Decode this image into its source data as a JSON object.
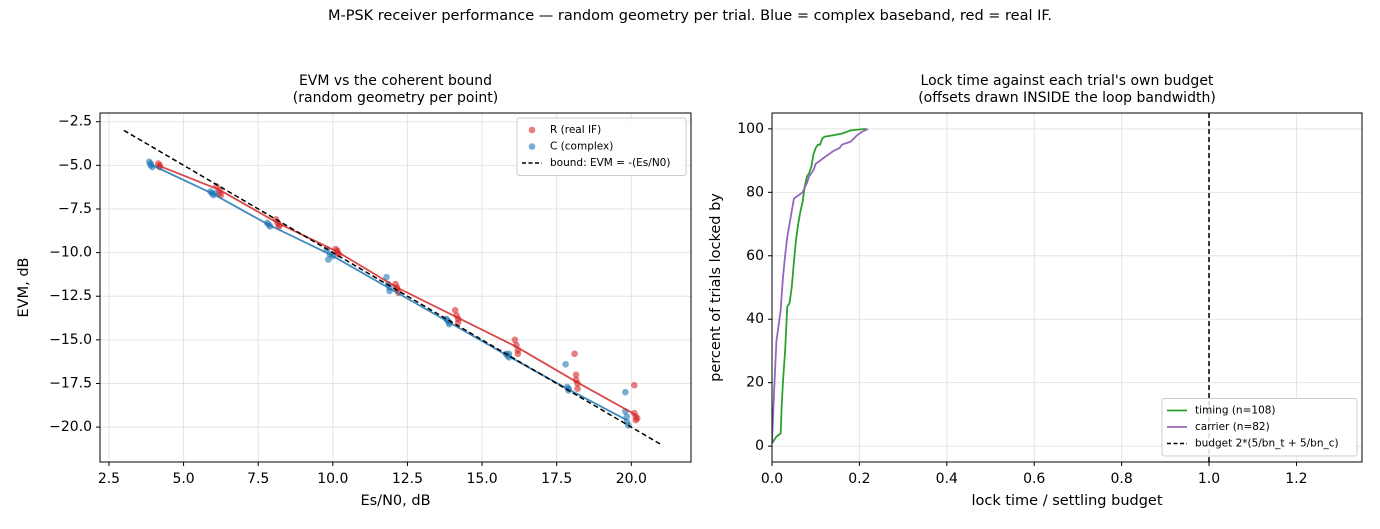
{
  "suptitle": "M-PSK receiver performance — random geometry per trial.  Blue = complex baseband, red = real IF.",
  "colors": {
    "red": "#d62728",
    "blue": "#1f77b4",
    "green": "#2ca02c",
    "purple": "#9467bd",
    "black": "#000000",
    "grid": "#e4e4e4"
  },
  "chart_data": [
    {
      "type": "scatter",
      "title": [
        "EVM vs the coherent bound",
        "(random geometry per point)"
      ],
      "xlabel": "Es/N0, dB",
      "ylabel": "EVM, dB",
      "xlim": [
        2.2,
        22.0
      ],
      "ylim": [
        -22.0,
        -2.0
      ],
      "xticks": [
        2.5,
        5.0,
        7.5,
        10.0,
        12.5,
        15.0,
        17.5,
        20.0
      ],
      "xtick_labels": [
        "2.5",
        "5.0",
        "7.5",
        "10.0",
        "12.5",
        "15.0",
        "17.5",
        "20.0"
      ],
      "yticks": [
        -2.5,
        -5.0,
        -7.5,
        -10.0,
        -12.5,
        -15.0,
        -17.5,
        -20.0
      ],
      "ytick_labels": [
        "−2.5",
        "−5.0",
        "−7.5",
        "−10.0",
        "−12.5",
        "−15.0",
        "−17.5",
        "−20.0"
      ],
      "grid": true,
      "legend_position": "upper right",
      "series": [
        {
          "name": "R (real IF)",
          "kind": "scatter",
          "color": "#d62728",
          "x": [
            4.15,
            4.2,
            4.2,
            6.1,
            6.2,
            6.2,
            6.25,
            8.1,
            8.15,
            8.2,
            8.2,
            10.1,
            10.15,
            10.15,
            10.2,
            12.1,
            12.15,
            12.15,
            12.2,
            14.1,
            14.15,
            14.2,
            14.2,
            16.1,
            16.15,
            16.2,
            16.2,
            18.1,
            18.15,
            18.15,
            18.2,
            18.2,
            20.1,
            20.1,
            20.15,
            20.15,
            20.2
          ],
          "y": [
            -4.9,
            -5.0,
            -5.1,
            -6.2,
            -6.4,
            -6.6,
            -6.7,
            -8.1,
            -8.3,
            -8.4,
            -8.5,
            -9.8,
            -9.9,
            -10.0,
            -10.1,
            -11.8,
            -12.0,
            -12.1,
            -12.3,
            -13.3,
            -13.6,
            -13.8,
            -14.0,
            -15.0,
            -15.3,
            -15.6,
            -15.8,
            -15.8,
            -17.0,
            -17.3,
            -17.5,
            -17.8,
            -17.6,
            -19.2,
            -19.4,
            -19.6,
            -19.5
          ]
        },
        {
          "name": "C (complex)",
          "kind": "scatter",
          "color": "#1f77b4",
          "x": [
            3.85,
            3.9,
            3.9,
            3.95,
            5.9,
            5.95,
            6.0,
            6.05,
            7.8,
            7.85,
            7.9,
            9.8,
            9.85,
            9.9,
            10.0,
            11.8,
            11.85,
            11.9,
            11.9,
            13.8,
            13.85,
            13.9,
            13.9,
            15.8,
            15.85,
            15.9,
            15.9,
            17.8,
            17.85,
            17.9,
            17.9,
            19.8,
            19.8,
            19.85,
            19.85,
            19.9
          ],
          "y": [
            -4.8,
            -4.9,
            -5.0,
            -5.1,
            -6.5,
            -6.6,
            -6.7,
            -6.6,
            -8.3,
            -8.4,
            -8.5,
            -9.8,
            -10.4,
            -10.1,
            -10.2,
            -11.4,
            -11.8,
            -12.0,
            -12.2,
            -13.8,
            -13.9,
            -14.0,
            -14.1,
            -15.8,
            -15.9,
            -16.0,
            -15.8,
            -16.4,
            -17.7,
            -17.8,
            -17.9,
            -18.0,
            -19.1,
            -19.4,
            -19.7,
            -19.9
          ]
        },
        {
          "name": "",
          "kind": "line",
          "color": "#d62728",
          "x": [
            4.15,
            6.2,
            8.15,
            10.15,
            12.15,
            14.15,
            16.15,
            18.15,
            20.15
          ],
          "y": [
            -5.0,
            -6.4,
            -8.3,
            -9.95,
            -12.0,
            -13.7,
            -15.4,
            -17.4,
            -19.3
          ]
        },
        {
          "name": "",
          "kind": "line",
          "color": "#1f77b4",
          "x": [
            3.9,
            5.95,
            7.85,
            9.9,
            11.85,
            13.85,
            15.85,
            17.85,
            19.85
          ],
          "y": [
            -4.95,
            -6.6,
            -8.4,
            -10.1,
            -12.0,
            -13.95,
            -15.9,
            -17.8,
            -19.6
          ]
        },
        {
          "name": "bound: EVM = -(Es/N0)",
          "kind": "line",
          "color": "#000000",
          "dashed": true,
          "x": [
            3.0,
            21.0
          ],
          "y": [
            -3.0,
            -21.0
          ]
        }
      ]
    },
    {
      "type": "line",
      "title": [
        "Lock time against each trial's own budget",
        "(offsets drawn INSIDE the loop bandwidth)"
      ],
      "xlabel": "lock time / settling budget",
      "ylabel": "percent of trials locked by",
      "xlim": [
        0.0,
        1.35
      ],
      "ylim": [
        -5.0,
        105.0
      ],
      "xticks": [
        0.0,
        0.2,
        0.4,
        0.6,
        0.8,
        1.0,
        1.2
      ],
      "xtick_labels": [
        "0.0",
        "0.2",
        "0.4",
        "0.6",
        "0.8",
        "1.0",
        "1.2"
      ],
      "yticks": [
        0,
        20,
        40,
        60,
        80,
        100
      ],
      "ytick_labels": [
        "0",
        "20",
        "40",
        "60",
        "80",
        "100"
      ],
      "grid": true,
      "legend_position": "lower right",
      "series": [
        {
          "name": "timing (n=108)",
          "kind": "line",
          "color": "#2ca02c",
          "x": [
            0.0,
            0.01,
            0.02,
            0.022,
            0.025,
            0.03,
            0.035,
            0.04,
            0.045,
            0.05,
            0.055,
            0.06,
            0.065,
            0.07,
            0.075,
            0.08,
            0.085,
            0.09,
            0.095,
            0.1,
            0.105,
            0.11,
            0.115,
            0.12,
            0.14,
            0.16,
            0.18,
            0.2,
            0.215
          ],
          "y": [
            0.9,
            3.0,
            4.0,
            12.0,
            20.0,
            30.0,
            44.0,
            45.0,
            50.0,
            58.0,
            65.0,
            70.0,
            74.0,
            77.0,
            82.0,
            85.0,
            86.0,
            88.0,
            92.0,
            94.0,
            95.0,
            95.0,
            97.0,
            97.5,
            98.0,
            98.5,
            99.5,
            99.8,
            100.0
          ]
        },
        {
          "name": "carrier (n=82)",
          "kind": "line",
          "color": "#9467bd",
          "x": [
            0.0,
            0.005,
            0.01,
            0.015,
            0.02,
            0.025,
            0.03,
            0.035,
            0.04,
            0.045,
            0.05,
            0.06,
            0.07,
            0.08,
            0.085,
            0.09,
            0.095,
            0.1,
            0.11,
            0.12,
            0.14,
            0.155,
            0.16,
            0.18,
            0.195,
            0.205,
            0.22
          ],
          "y": [
            1.2,
            18.0,
            33.0,
            38.0,
            43.0,
            53.0,
            60.0,
            66.0,
            70.0,
            74.0,
            78.0,
            79.0,
            80.0,
            83.0,
            85.0,
            86.0,
            87.0,
            89.0,
            90.0,
            91.0,
            93.0,
            94.0,
            95.0,
            96.0,
            98.0,
            99.0,
            100.0
          ]
        },
        {
          "name": "budget 2*(5/bn_t + 5/bn_c)",
          "kind": "vline",
          "color": "#000000",
          "dashed": true,
          "x": [
            1.0,
            1.0
          ],
          "y": [
            -5.0,
            105.0
          ]
        }
      ]
    }
  ]
}
